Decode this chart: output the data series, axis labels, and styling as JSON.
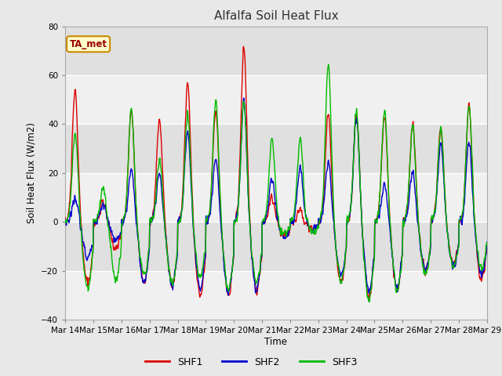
{
  "title": "Alfalfa Soil Heat Flux",
  "ylabel": "Soil Heat Flux (W/m2)",
  "xlabel": "Time",
  "ylim": [
    -40,
    80
  ],
  "yticks": [
    -40,
    -20,
    0,
    20,
    40,
    60,
    80
  ],
  "annotation": "TA_met",
  "series_colors": {
    "SHF1": "#dd0000",
    "SHF2": "#0000cc",
    "SHF3": "#00bb00"
  },
  "legend_labels": [
    "SHF1",
    "SHF2",
    "SHF3"
  ],
  "xtick_labels": [
    "Mar 14",
    "Mar 15",
    "Mar 16",
    "Mar 17",
    "Mar 18",
    "Mar 19",
    "Mar 20",
    "Mar 21",
    "Mar 22",
    "Mar 23",
    "Mar 24",
    "Mar 25",
    "Mar 26",
    "Mar 27",
    "Mar 28",
    "Mar 29"
  ],
  "fig_bg": "#e8e8e8",
  "plot_bg": "#e0e0e0",
  "grid_color": "#f0f0f0",
  "n_days": 15,
  "pts_per_day": 96,
  "day_peaks_shf1": [
    54,
    8,
    46,
    42,
    57,
    46,
    71,
    10,
    5,
    45,
    44,
    43,
    40,
    39,
    48
  ],
  "day_peaks_shf2": [
    10,
    7,
    22,
    19,
    38,
    26,
    50,
    18,
    22,
    25,
    43,
    16,
    20,
    32,
    33
  ],
  "day_peaks_shf3": [
    37,
    14,
    47,
    25,
    44,
    50,
    50,
    34,
    34,
    65,
    45,
    46,
    40,
    39,
    48
  ],
  "day_troughs_shf1": [
    -25,
    -11,
    -25,
    -26,
    -30,
    -30,
    -28,
    -6,
    -3,
    -25,
    -30,
    -28,
    -20,
    -17,
    -24
  ],
  "day_troughs_shf2": [
    -15,
    -8,
    -25,
    -26,
    -27,
    -29,
    -28,
    -6,
    -3,
    -22,
    -28,
    -27,
    -20,
    -18,
    -22
  ],
  "day_troughs_shf3": [
    -27,
    -24,
    -22,
    -25,
    -23,
    -28,
    -25,
    -5,
    -4,
    -24,
    -32,
    -28,
    -21,
    -19,
    -20
  ]
}
